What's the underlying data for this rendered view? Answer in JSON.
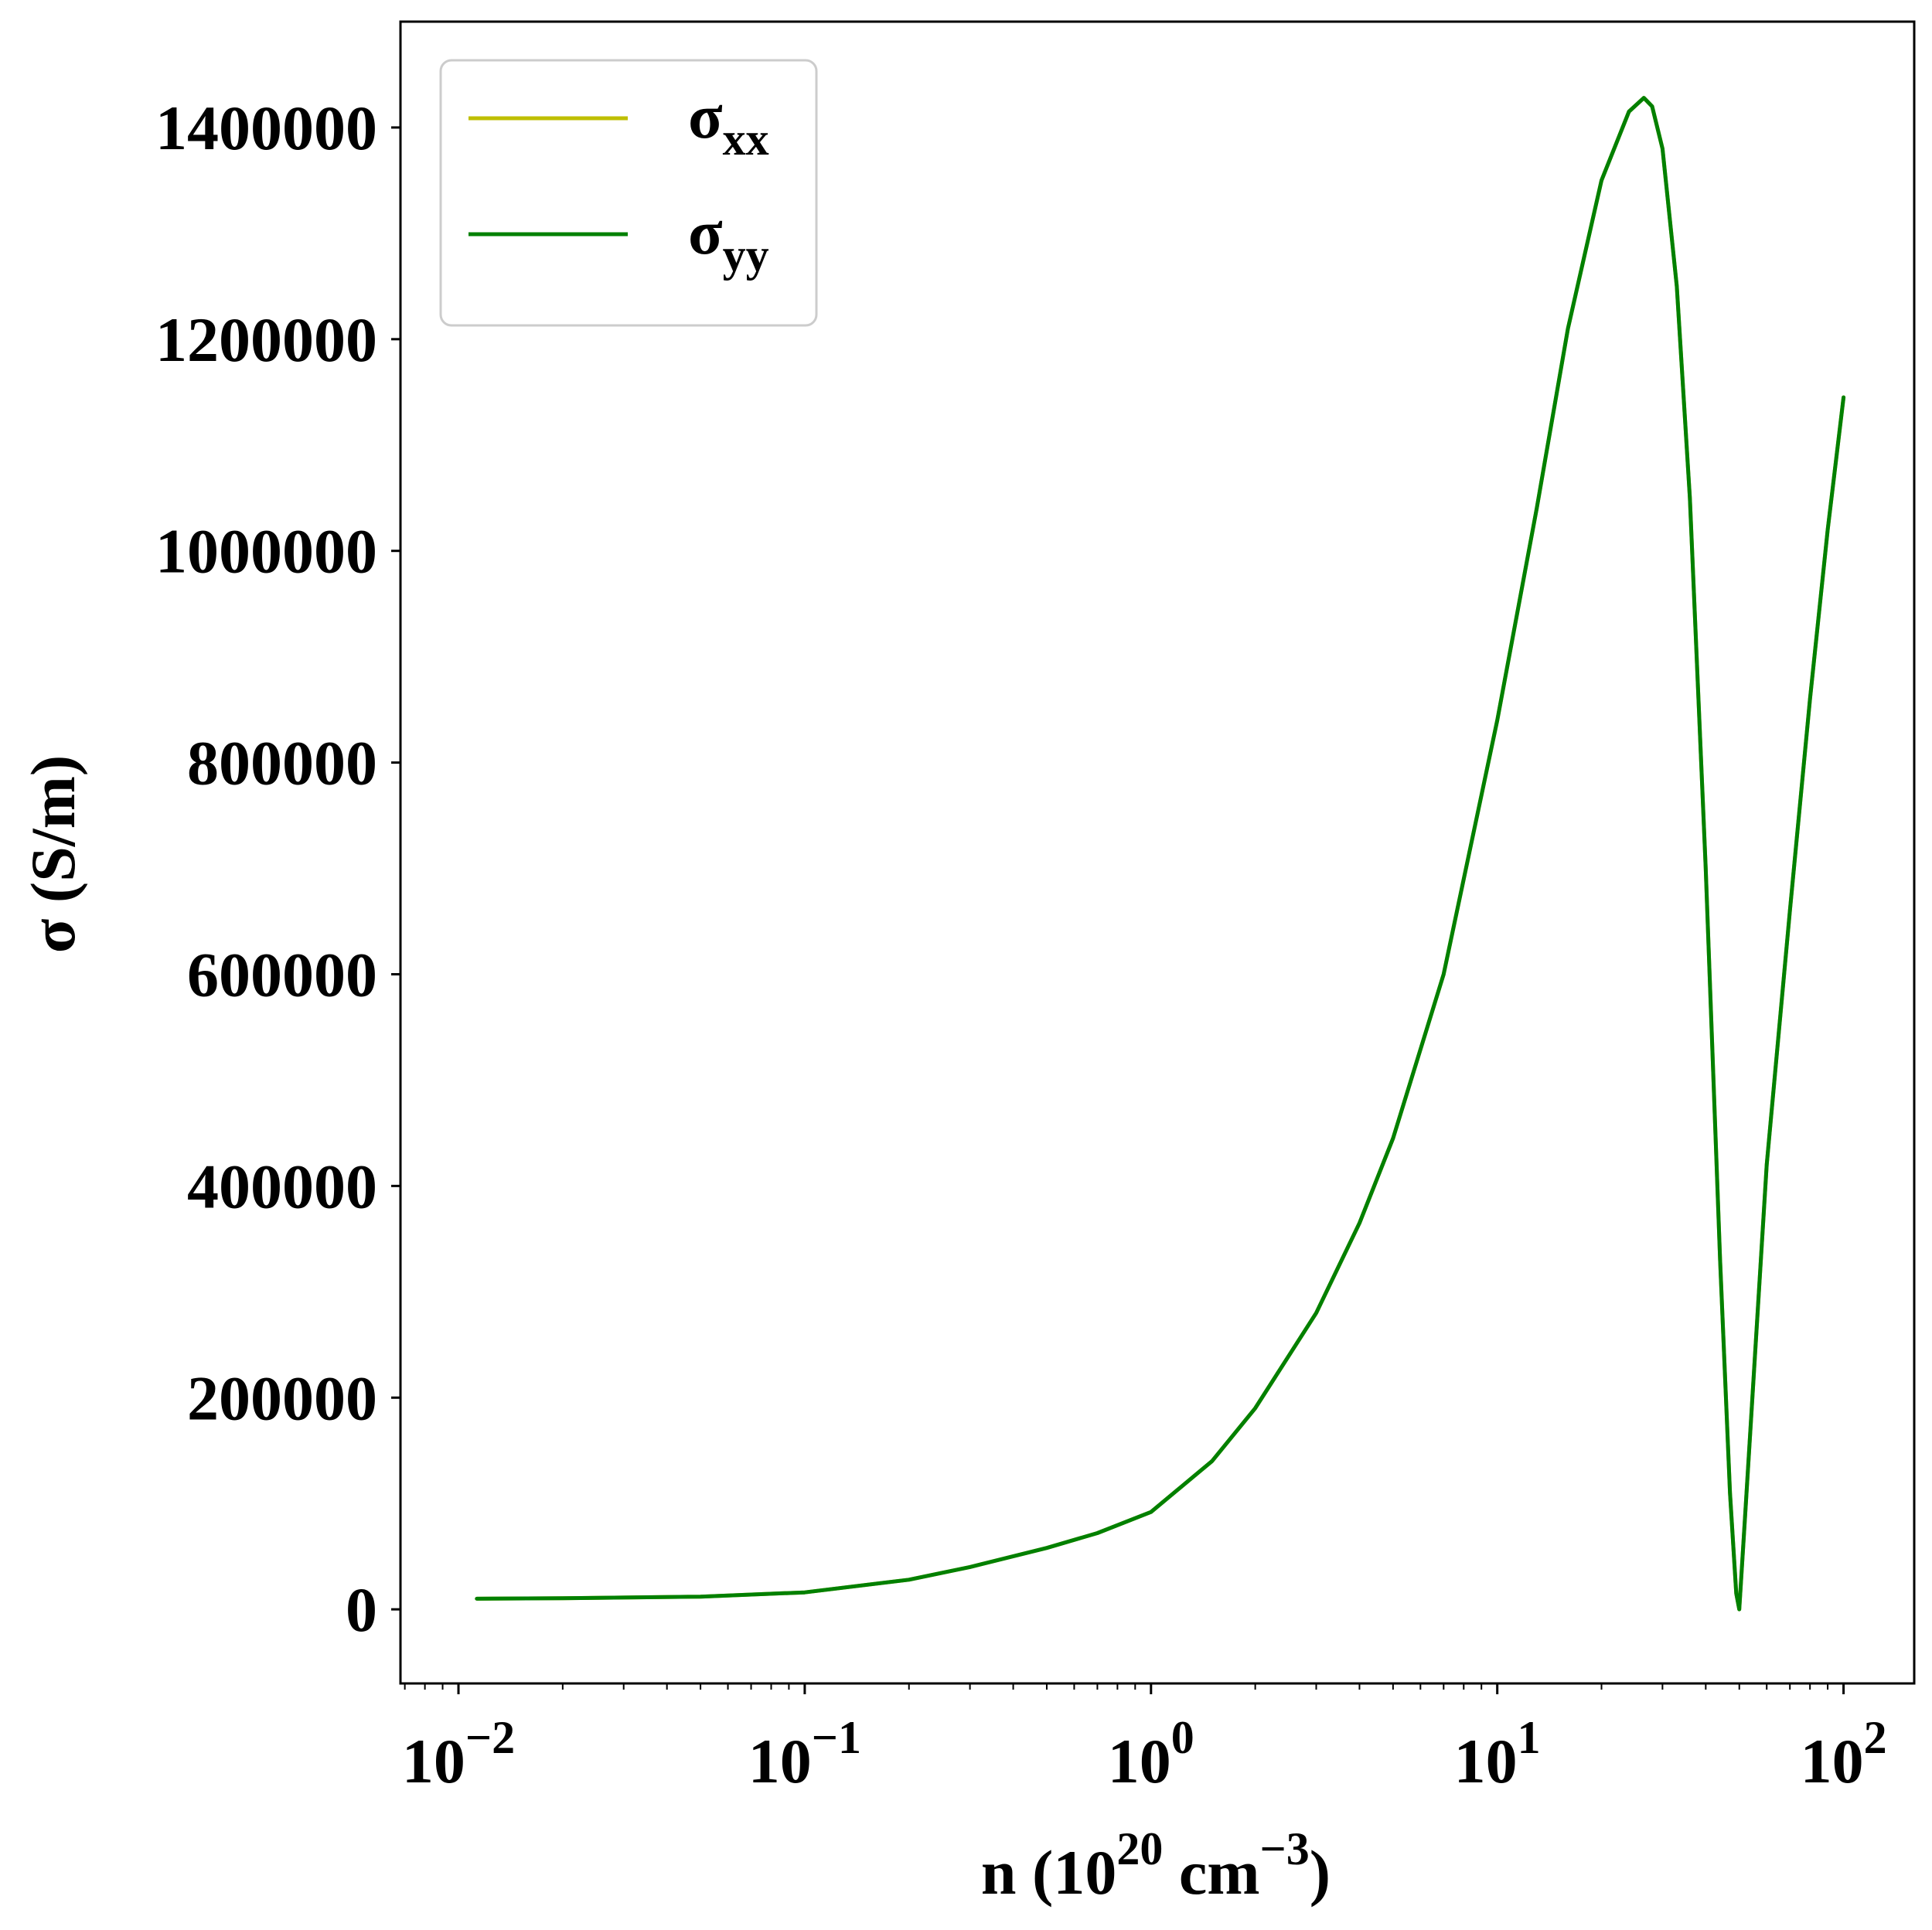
{
  "chart_data": {
    "type": "line",
    "xscale": "log",
    "xlim": [
      0.0068,
      160
    ],
    "ylim": [
      -70000,
      1500000
    ],
    "xticks": [
      {
        "value": 0.01,
        "base": "10",
        "exp": "−2"
      },
      {
        "value": 0.1,
        "base": "10",
        "exp": "−1"
      },
      {
        "value": 1,
        "base": "10",
        "exp": "0"
      },
      {
        "value": 10,
        "base": "10",
        "exp": "1"
      },
      {
        "value": 100,
        "base": "10",
        "exp": "2"
      }
    ],
    "yticks": [
      0,
      200000,
      400000,
      600000,
      800000,
      1000000,
      1200000,
      1400000
    ],
    "ytick_labels": [
      "0",
      "200000",
      "400000",
      "600000",
      "800000",
      "1000000",
      "1200000",
      "1400000"
    ],
    "xlabel": {
      "pre": "n (10",
      "exp1": "20",
      "mid": " cm",
      "exp2": "−3",
      "post": ")"
    },
    "ylabel": "σ (S/m)",
    "grid": false,
    "legend_position": "top-left",
    "series": [
      {
        "name": "σ",
        "sub": "xx",
        "color": "#bfbf00",
        "x": [
          0.0113,
          0.02,
          0.05,
          0.1,
          0.2,
          0.3,
          0.5,
          0.7,
          1,
          1.5,
          2,
          3,
          4,
          5,
          7,
          10,
          13,
          16,
          20,
          24,
          26.5,
          28,
          30,
          33,
          36,
          40,
          44,
          47,
          49,
          50,
          52,
          60,
          70,
          80,
          90,
          100
        ],
        "y": [
          10000,
          10500,
          12000,
          16000,
          28000,
          40000,
          58000,
          72000,
          92000,
          140000,
          190000,
          280000,
          365000,
          445000,
          600000,
          840000,
          1040000,
          1210000,
          1350000,
          1415000,
          1428000,
          1420000,
          1380000,
          1250000,
          1050000,
          700000,
          330000,
          110000,
          15000,
          0,
          90000,
          420000,
          660000,
          860000,
          1020000,
          1145000
        ]
      },
      {
        "name": "σ",
        "sub": "yy",
        "color": "#008000",
        "x": [
          0.0113,
          0.02,
          0.05,
          0.1,
          0.2,
          0.3,
          0.5,
          0.7,
          1,
          1.5,
          2,
          3,
          4,
          5,
          7,
          10,
          13,
          16,
          20,
          24,
          26.5,
          28,
          30,
          33,
          36,
          40,
          44,
          47,
          49,
          50,
          52,
          60,
          70,
          80,
          90,
          100
        ],
        "y": [
          10000,
          10500,
          12000,
          16000,
          28000,
          40000,
          58000,
          72000,
          92000,
          140000,
          190000,
          280000,
          365000,
          445000,
          600000,
          840000,
          1040000,
          1210000,
          1350000,
          1415000,
          1428000,
          1420000,
          1380000,
          1250000,
          1050000,
          700000,
          330000,
          110000,
          15000,
          0,
          90000,
          420000,
          660000,
          860000,
          1020000,
          1145000
        ]
      }
    ]
  }
}
